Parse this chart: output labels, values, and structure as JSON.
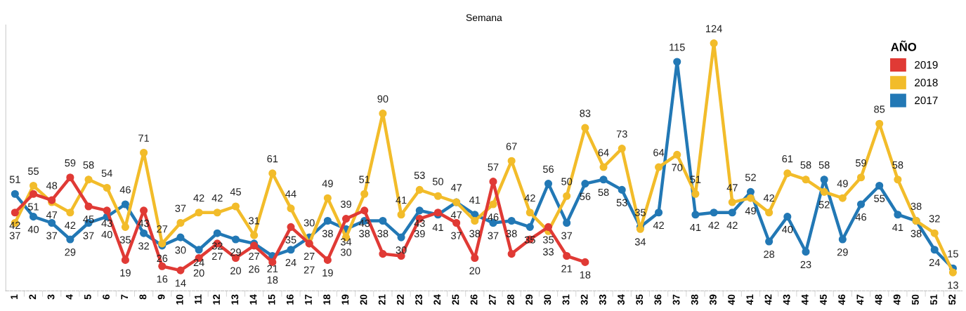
{
  "chart_data": {
    "type": "line",
    "xlabel": "Semana",
    "legend_title": "AÑO",
    "legend": "top right",
    "marker": "circle",
    "line_style": "solid",
    "grid": false,
    "tick_labels": "x",
    "categories": [
      "1",
      "2",
      "3",
      "4",
      "5",
      "6",
      "7",
      "8",
      "9",
      "10",
      "11",
      "12",
      "13",
      "14",
      "15",
      "16",
      "17",
      "18",
      "19",
      "20",
      "21",
      "22",
      "23",
      "24",
      "25",
      "26",
      "27",
      "28",
      "29",
      "30",
      "31",
      "32",
      "33",
      "34",
      "35",
      "36",
      "37",
      "38",
      "39",
      "40",
      "41",
      "42",
      "43",
      "44",
      "45",
      "46",
      "47",
      "48",
      "49",
      "50",
      "51",
      "52"
    ],
    "series": [
      {
        "name": "2019",
        "color": "#e03a35",
        "values": [
          42,
          51,
          48,
          59,
          45,
          43,
          19,
          43,
          16,
          14,
          20,
          27,
          20,
          26,
          18,
          35,
          27,
          19,
          39,
          43,
          22,
          21,
          39,
          42,
          37,
          20,
          57,
          22,
          29,
          35,
          21,
          18,
          null,
          null,
          null,
          null,
          null,
          null,
          null,
          null,
          null,
          null,
          null,
          null,
          null,
          null,
          null,
          null,
          null,
          null,
          null,
          null
        ],
        "value_labels": [
          "42",
          "51",
          "48",
          "59",
          "45",
          "43",
          "19",
          "43",
          "16",
          "14",
          "20",
          "27",
          "20",
          "26",
          "18",
          "35",
          "27",
          "19",
          "39",
          "43",
          null,
          null,
          "39",
          null,
          "37",
          "20",
          "57",
          null,
          null,
          "35",
          "21",
          "18",
          null,
          null,
          null,
          null,
          null,
          null,
          null,
          null,
          null,
          null,
          null,
          null,
          null,
          null,
          null,
          null,
          null,
          null,
          null,
          null
        ]
      },
      {
        "name": "2018",
        "color": "#f2bc2a",
        "values": [
          37,
          55,
          47,
          42,
          58,
          54,
          35,
          71,
          27,
          37,
          42,
          42,
          45,
          31,
          61,
          44,
          27,
          49,
          30,
          51,
          90,
          41,
          53,
          50,
          47,
          38,
          46,
          67,
          42,
          33,
          50,
          83,
          64,
          73,
          34,
          64,
          70,
          51,
          124,
          47,
          49,
          42,
          61,
          58,
          52,
          49,
          59,
          85,
          58,
          38,
          32,
          13
        ],
        "value_labels": [
          "37",
          "55",
          "47",
          "42",
          "58",
          "54",
          "35",
          "71",
          "27",
          "37",
          "42",
          "42",
          "45",
          "31",
          "61",
          "44",
          "27",
          "49",
          "30",
          "51",
          "90",
          "41",
          "53",
          "50",
          "47",
          "38",
          "46",
          "67",
          "42",
          "33",
          "50",
          "83",
          "64",
          "73",
          "34",
          "64",
          "70",
          "51",
          "124",
          "47",
          "49",
          "42",
          "61",
          "58",
          "52",
          "49",
          "59",
          "85",
          "58",
          "38",
          "32",
          "13"
        ]
      },
      {
        "name": "2017",
        "color": "#2278b5",
        "values": [
          51,
          40,
          37,
          29,
          37,
          40,
          46,
          32,
          26,
          30,
          24,
          32,
          29,
          27,
          21,
          24,
          30,
          38,
          34,
          38,
          38,
          30,
          43,
          41,
          47,
          41,
          37,
          38,
          35,
          56,
          37,
          56,
          58,
          53,
          35,
          42,
          115,
          41,
          42,
          42,
          52,
          28,
          40,
          23,
          58,
          29,
          46,
          55,
          41,
          38,
          24,
          15
        ],
        "value_labels": [
          "51",
          "40",
          "37",
          "29",
          "37",
          "40",
          "46",
          "32",
          "26",
          "30",
          "24",
          "32",
          "29",
          "27",
          "21",
          "24",
          "30",
          "38",
          "34",
          "38",
          "38",
          "30",
          "43",
          "41",
          "47",
          "41",
          "37",
          "38",
          "35",
          "56",
          "37",
          "56",
          "58",
          "53",
          "35",
          "42",
          "115",
          "41",
          "42",
          "42",
          "52",
          "28",
          "40",
          "23",
          "58",
          "29",
          "46",
          "55",
          "41",
          "38",
          "24",
          "15"
        ]
      }
    ]
  }
}
